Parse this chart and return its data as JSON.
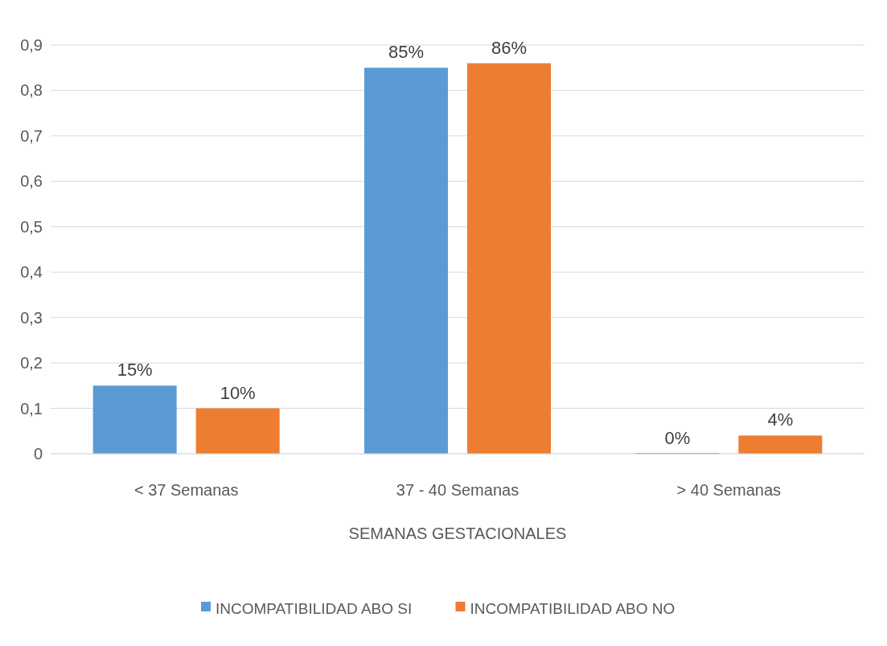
{
  "chart_data": {
    "type": "bar",
    "xlabel": "SEMANAS GESTACIONALES",
    "categories": [
      "< 37 Semanas",
      "37 - 40 Semanas",
      "> 40 Semanas"
    ],
    "series": [
      {
        "name": "INCOMPATIBILIDAD ABO SI",
        "color": "#5b9bd5",
        "values": [
          0.15,
          0.85,
          0
        ],
        "value_labels": [
          "15%",
          "85%",
          "0%"
        ]
      },
      {
        "name": "INCOMPATIBILIDAD ABO NO",
        "color": "#ed7d31",
        "values": [
          0.1,
          0.86,
          0.04
        ],
        "value_labels": [
          "10%",
          "86%",
          "4%"
        ]
      }
    ],
    "ylim": [
      0,
      0.9
    ],
    "yticks": [
      {
        "value": 0,
        "label": "0"
      },
      {
        "value": 0.1,
        "label": "0,1"
      },
      {
        "value": 0.2,
        "label": "0,2"
      },
      {
        "value": 0.3,
        "label": "0,3"
      },
      {
        "value": 0.4,
        "label": "0,4"
      },
      {
        "value": 0.5,
        "label": "0,5"
      },
      {
        "value": 0.6,
        "label": "0,6"
      },
      {
        "value": 0.7,
        "label": "0,7"
      },
      {
        "value": 0.8,
        "label": "0,8"
      },
      {
        "value": 0.9,
        "label": "0,9"
      }
    ],
    "grid": "y",
    "legend": "bottom"
  }
}
